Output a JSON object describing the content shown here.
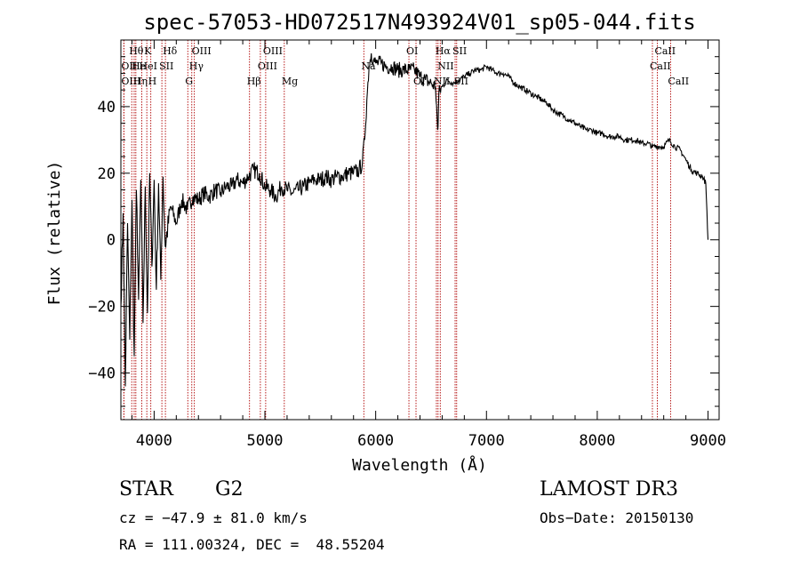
{
  "chart_data": {
    "type": "line",
    "title": "spec-57053-HD072517N493924V01_sp05-044.fits",
    "xlabel": "Wavelength (Å)",
    "ylabel": "Flux (relative)",
    "xlim": [
      3700,
      9100
    ],
    "ylim": [
      -54,
      60
    ],
    "x_ticks": [
      4000,
      5000,
      6000,
      7000,
      8000,
      9000
    ],
    "y_ticks": [
      -40,
      -20,
      0,
      20,
      40
    ],
    "series": [
      {
        "name": "spectrum",
        "x": [
          3700,
          3720,
          3740,
          3760,
          3780,
          3800,
          3820,
          3840,
          3860,
          3880,
          3900,
          3920,
          3940,
          3960,
          3980,
          4000,
          4020,
          4040,
          4060,
          4080,
          4100,
          4150,
          4200,
          4250,
          4300,
          4350,
          4400,
          4450,
          4500,
          4550,
          4600,
          4650,
          4700,
          4750,
          4800,
          4850,
          4900,
          4950,
          5000,
          5050,
          5100,
          5150,
          5200,
          5250,
          5300,
          5350,
          5400,
          5450,
          5500,
          5550,
          5600,
          5650,
          5700,
          5750,
          5800,
          5850,
          5880,
          5900,
          5920,
          5940,
          5960,
          5980,
          6000,
          6050,
          6100,
          6150,
          6200,
          6250,
          6300,
          6350,
          6400,
          6450,
          6500,
          6540,
          6560,
          6563,
          6570,
          6600,
          6650,
          6700,
          6750,
          6800,
          6850,
          6900,
          6950,
          7000,
          7050,
          7100,
          7150,
          7200,
          7250,
          7300,
          7350,
          7400,
          7450,
          7500,
          7550,
          7600,
          7650,
          7700,
          7750,
          7800,
          7850,
          7900,
          7950,
          8000,
          8050,
          8100,
          8150,
          8200,
          8250,
          8300,
          8350,
          8400,
          8450,
          8500,
          8550,
          8600,
          8650,
          8700,
          8750,
          8800,
          8850,
          8900,
          8950,
          8980,
          9000
        ],
        "values": [
          -20,
          8,
          -44,
          5,
          -30,
          12,
          -35,
          15,
          -18,
          18,
          -25,
          16,
          -22,
          20,
          -8,
          18,
          -15,
          17,
          -12,
          19,
          -2,
          10,
          5,
          12,
          9,
          13,
          12,
          14,
          13,
          15,
          14,
          16,
          16,
          18,
          17,
          19,
          21,
          20,
          16,
          15,
          13,
          16,
          15,
          14,
          15,
          16,
          17,
          18,
          18,
          19,
          18,
          19,
          19,
          20,
          20,
          21,
          23,
          30,
          42,
          52,
          56,
          54,
          53,
          53,
          52,
          52,
          51,
          51,
          51,
          51,
          49,
          48,
          47,
          46,
          33,
          34,
          44,
          46,
          48,
          47,
          48,
          49,
          50,
          51,
          51,
          52,
          51,
          50,
          50,
          49,
          47,
          46,
          45,
          44,
          43,
          42,
          41,
          39,
          38,
          37,
          36,
          35,
          34,
          33,
          33,
          32,
          32,
          31,
          31,
          31,
          30,
          30,
          30,
          29,
          29,
          28,
          28,
          28,
          30,
          28,
          27,
          24,
          21,
          20,
          19,
          17,
          0
        ]
      }
    ],
    "lines": [
      {
        "label": "Hθ",
        "x": 3798,
        "row": 0
      },
      {
        "label": "OII",
        "x": 3727,
        "row": 1
      },
      {
        "label": "OIII",
        "x": 3727,
        "row": 2
      },
      {
        "label": "He",
        "x": 3820,
        "row": 1
      },
      {
        "label": "Hη",
        "x": 3835,
        "row": 2
      },
      {
        "label": "K",
        "x": 3934,
        "row": 0
      },
      {
        "label": "HeI",
        "x": 3889,
        "row": 1
      },
      {
        "label": "H",
        "x": 3970,
        "row": 2
      },
      {
        "label": "Hδ",
        "x": 4102,
        "row": 0
      },
      {
        "label": "SII",
        "x": 4070,
        "row": 1
      },
      {
        "label": "OIII",
        "x": 4363,
        "row": 0
      },
      {
        "label": "Hγ",
        "x": 4340,
        "row": 1
      },
      {
        "label": "G",
        "x": 4304,
        "row": 2
      },
      {
        "label": "OIII",
        "x": 5007,
        "row": 0
      },
      {
        "label": "OIII",
        "x": 4959,
        "row": 1
      },
      {
        "label": "Hβ",
        "x": 4861,
        "row": 2
      },
      {
        "label": "Mg",
        "x": 5175,
        "row": 2
      },
      {
        "label": "Na",
        "x": 5893,
        "row": 1
      },
      {
        "label": "OI",
        "x": 6300,
        "row": 0
      },
      {
        "label": "OI",
        "x": 6364,
        "row": 2
      },
      {
        "label": "Hα",
        "x": 6563,
        "row": 0
      },
      {
        "label": "SII",
        "x": 6717,
        "row": 0
      },
      {
        "label": "NII",
        "x": 6583,
        "row": 1
      },
      {
        "label": "SII",
        "x": 6731,
        "row": 2
      },
      {
        "label": "NII",
        "x": 6548,
        "row": 2
      },
      {
        "label": "CaII",
        "x": 8542,
        "row": 0
      },
      {
        "label": "CaII",
        "x": 8498,
        "row": 1
      },
      {
        "label": "CaII",
        "x": 8662,
        "row": 2
      }
    ]
  },
  "info": {
    "object_type": "STAR",
    "subclass": "G2",
    "survey": "LAMOST DR3",
    "cz": "cz = −47.9 ± 81.0 km/s",
    "obs_date": "Obs−Date: 20150130",
    "coords": "RA = 111.00324, DEC =  48.55204"
  }
}
